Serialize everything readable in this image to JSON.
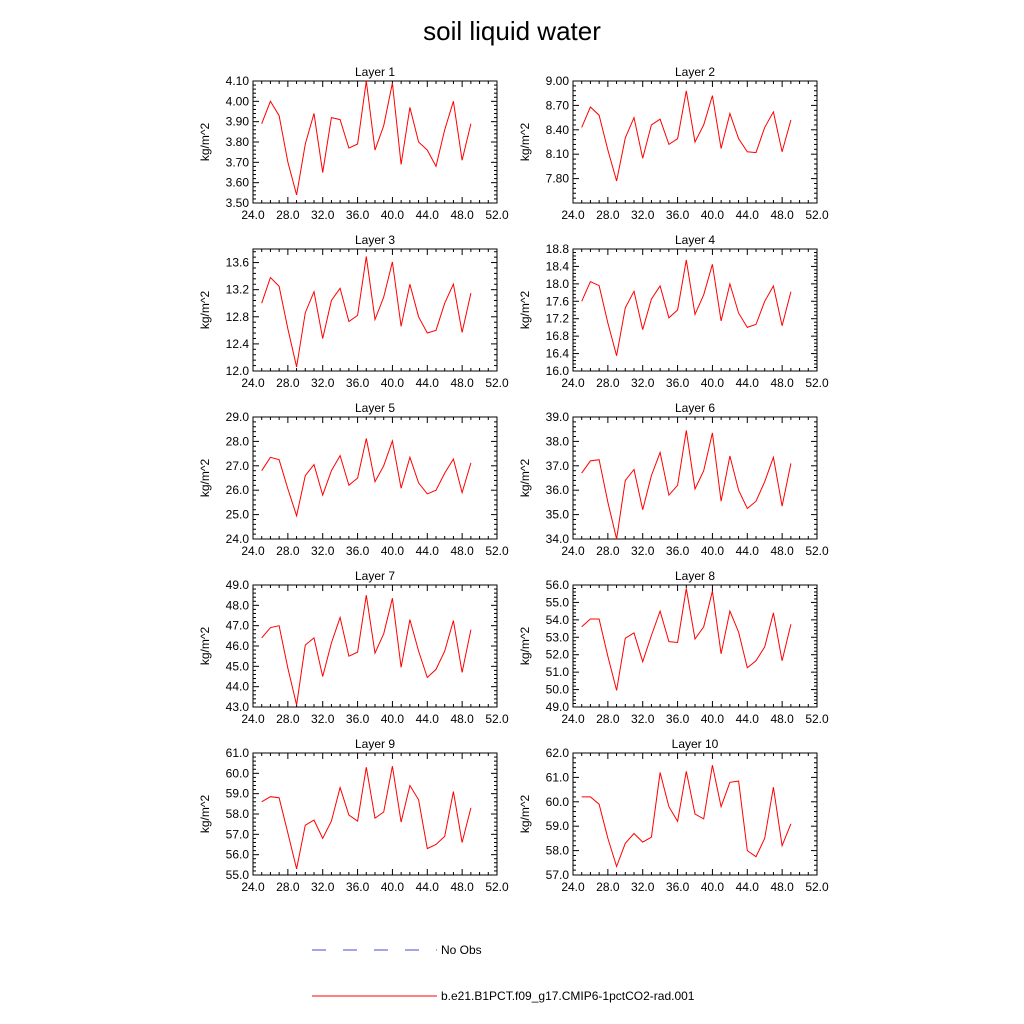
{
  "title": "soil liquid water",
  "chart_data": {
    "type": "line",
    "title": "soil liquid water",
    "x": [
      25,
      26,
      27,
      28,
      29,
      30,
      31,
      32,
      33,
      34,
      35,
      36,
      37,
      38,
      39,
      40,
      41,
      42,
      43,
      44,
      45,
      46,
      47,
      48,
      49
    ],
    "xlim": [
      24,
      52
    ],
    "xticks": [
      "24.0",
      "28.0",
      "32.0",
      "36.0",
      "40.0",
      "44.0",
      "48.0",
      "52.0"
    ],
    "legend_position": "bottom",
    "legend": [
      {
        "label": "No Obs",
        "color": "#4a4ad0",
        "style": "dashed"
      },
      {
        "label": "b.e21.B1PCT.f09_g17.CMIP6-1pctCO2-rad.001",
        "color": "#ff0000",
        "style": "solid"
      }
    ],
    "panels": [
      {
        "title": "Layer 1",
        "ylabel": "kg/m^2",
        "ylim": [
          3.5,
          4.1
        ],
        "yticks": [
          "3.50",
          "3.60",
          "3.70",
          "3.80",
          "3.90",
          "4.00",
          "4.10"
        ],
        "values": [
          3.89,
          4.0,
          3.93,
          3.7,
          3.54,
          3.79,
          3.94,
          3.65,
          3.92,
          3.91,
          3.77,
          3.79,
          4.1,
          3.76,
          3.88,
          4.09,
          3.69,
          3.97,
          3.8,
          3.76,
          3.68,
          3.86,
          4.0,
          3.71,
          3.89
        ]
      },
      {
        "title": "Layer 2",
        "ylabel": "kg/m^2",
        "ylim": [
          7.5,
          9.0
        ],
        "yticks": [
          "7.80",
          "8.10",
          "8.40",
          "8.70",
          "9.00"
        ],
        "values": [
          8.43,
          8.68,
          8.58,
          8.15,
          7.77,
          8.3,
          8.55,
          8.05,
          8.46,
          8.53,
          8.22,
          8.29,
          8.88,
          8.25,
          8.46,
          8.82,
          8.17,
          8.6,
          8.29,
          8.13,
          8.12,
          8.43,
          8.62,
          8.13,
          8.52
        ]
      },
      {
        "title": "Layer 3",
        "ylabel": "kg/m^2",
        "ylim": [
          12.0,
          13.8
        ],
        "yticks": [
          "12.0",
          "12.4",
          "12.8",
          "13.2",
          "13.6"
        ],
        "values": [
          13.0,
          13.38,
          13.25,
          12.62,
          12.06,
          12.86,
          13.17,
          12.48,
          13.04,
          13.22,
          12.73,
          12.82,
          13.69,
          12.76,
          13.09,
          13.61,
          12.66,
          13.28,
          12.8,
          12.56,
          12.6,
          13.0,
          13.28,
          12.57,
          13.15
        ]
      },
      {
        "title": "Layer 4",
        "ylabel": "kg/m^2",
        "ylim": [
          16.0,
          18.8
        ],
        "yticks": [
          "16.0",
          "16.4",
          "16.8",
          "17.2",
          "17.6",
          "18.0",
          "18.4",
          "18.8"
        ],
        "values": [
          17.6,
          18.05,
          17.96,
          17.1,
          16.35,
          17.45,
          17.83,
          16.95,
          17.65,
          17.95,
          17.22,
          17.4,
          18.55,
          17.3,
          17.75,
          18.45,
          17.15,
          18.0,
          17.33,
          17.0,
          17.07,
          17.6,
          17.95,
          17.04,
          17.82
        ]
      },
      {
        "title": "Layer 5",
        "ylabel": "kg/m^2",
        "ylim": [
          24.0,
          29.0
        ],
        "yticks": [
          "24.0",
          "25.0",
          "26.0",
          "27.0",
          "28.0",
          "29.0"
        ],
        "values": [
          26.8,
          27.35,
          27.25,
          26.05,
          24.95,
          26.6,
          27.05,
          25.8,
          26.8,
          27.42,
          26.2,
          26.5,
          28.12,
          26.35,
          27.0,
          28.02,
          26.08,
          27.35,
          26.3,
          25.85,
          26.0,
          26.7,
          27.28,
          25.9,
          27.12
        ]
      },
      {
        "title": "Layer 6",
        "ylabel": "kg/m^2",
        "ylim": [
          34.0,
          39.0
        ],
        "yticks": [
          "34.0",
          "35.0",
          "36.0",
          "37.0",
          "38.0",
          "39.0"
        ],
        "values": [
          36.7,
          37.2,
          37.25,
          35.5,
          34.0,
          36.4,
          36.85,
          35.2,
          36.6,
          37.55,
          35.8,
          36.2,
          38.45,
          36.05,
          36.8,
          38.35,
          35.55,
          37.4,
          36.0,
          35.25,
          35.55,
          36.35,
          37.35,
          35.35,
          37.1
        ]
      },
      {
        "title": "Layer 7",
        "ylabel": "kg/m^2",
        "ylim": [
          43.0,
          49.0
        ],
        "yticks": [
          "43.0",
          "44.0",
          "45.0",
          "46.0",
          "47.0",
          "48.0",
          "49.0"
        ],
        "values": [
          46.4,
          46.9,
          47.0,
          44.9,
          43.1,
          46.05,
          46.4,
          44.5,
          46.15,
          47.4,
          45.5,
          45.7,
          48.5,
          45.65,
          46.6,
          48.35,
          44.95,
          47.3,
          45.75,
          44.45,
          44.85,
          45.75,
          47.25,
          44.7,
          46.8
        ]
      },
      {
        "title": "Layer 8",
        "ylabel": "kg/m^2",
        "ylim": [
          49.0,
          56.0
        ],
        "yticks": [
          "49.0",
          "50.0",
          "51.0",
          "52.0",
          "53.0",
          "54.0",
          "55.0",
          "56.0"
        ],
        "values": [
          53.6,
          54.05,
          54.05,
          51.9,
          49.95,
          52.95,
          53.25,
          51.6,
          53.1,
          54.5,
          52.75,
          52.7,
          55.8,
          52.9,
          53.6,
          55.65,
          52.05,
          54.5,
          53.3,
          51.25,
          51.65,
          52.45,
          54.4,
          51.65,
          53.75
        ]
      },
      {
        "title": "Layer 9",
        "ylabel": "kg/m^2",
        "ylim": [
          55.0,
          61.0
        ],
        "yticks": [
          "55.0",
          "56.0",
          "57.0",
          "58.0",
          "59.0",
          "60.0",
          "61.0"
        ],
        "values": [
          58.6,
          58.85,
          58.8,
          57.05,
          55.3,
          57.45,
          57.7,
          56.8,
          57.65,
          59.3,
          57.95,
          57.65,
          60.3,
          57.8,
          58.1,
          60.35,
          57.6,
          59.4,
          58.7,
          56.3,
          56.5,
          56.9,
          59.1,
          56.6,
          58.3
        ]
      },
      {
        "title": "Layer 10",
        "ylabel": "kg/m^2",
        "ylim": [
          57.0,
          62.0
        ],
        "yticks": [
          "57.0",
          "58.0",
          "59.0",
          "60.0",
          "61.0",
          "62.0"
        ],
        "values": [
          60.2,
          60.2,
          59.9,
          58.5,
          57.35,
          58.3,
          58.7,
          58.35,
          58.55,
          61.2,
          59.8,
          59.2,
          61.25,
          59.5,
          59.3,
          61.5,
          59.8,
          60.8,
          60.85,
          58.0,
          57.75,
          58.5,
          60.6,
          58.2,
          59.1
        ]
      }
    ]
  }
}
